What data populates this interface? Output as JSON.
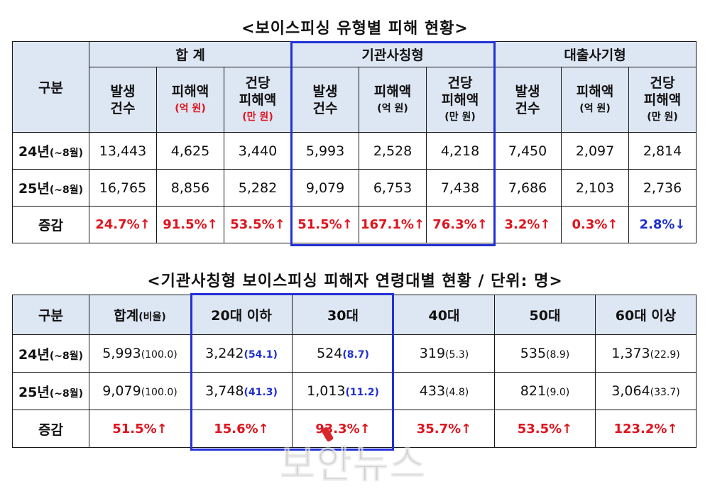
{
  "title1": "<보이스피싱 유형별 피해 현황>",
  "title2": "<기관사칭형 보이스피싱 피해자 연령대별 현황 / 단위: 명>",
  "table1": {
    "corner": "구분",
    "groups": [
      "합 계",
      "기관사칭형",
      "대출사기형"
    ],
    "sub": {
      "count_l1": "발생",
      "count_l2": "건수",
      "amount_l1": "피해액",
      "amount_unit": "(억 원)",
      "per_l1": "건당",
      "per_l2": "피해액",
      "per_unit": "(만 원)"
    },
    "rows": [
      {
        "label": "24년",
        "sub": "(~8월)",
        "values": [
          "13,443",
          "4,625",
          "3,440",
          "5,993",
          "2,528",
          "4,218",
          "7,450",
          "2,097",
          "2,814"
        ]
      },
      {
        "label": "25년",
        "sub": "(~8월)",
        "values": [
          "16,765",
          "8,856",
          "5,282",
          "9,079",
          "6,753",
          "7,438",
          "7,686",
          "2,103",
          "2,736"
        ]
      }
    ],
    "change": {
      "label": "증감",
      "values": [
        "24.7%↑",
        "91.5%↑",
        "53.5%↑",
        "51.5%↑",
        "167.1%↑",
        "76.3%↑",
        "3.2%↑",
        "0.3%↑",
        "2.8%↓"
      ]
    }
  },
  "table2": {
    "headers": [
      "구분",
      "합계",
      "(비율)",
      "20대 이하",
      "30대",
      "40대",
      "50대",
      "60대 이상"
    ],
    "rows": [
      {
        "label": "24년",
        "sub": "(~8월)",
        "cells": [
          {
            "v": "5,993",
            "r": "(100.0)"
          },
          {
            "v": "3,242",
            "r": "(54.1)"
          },
          {
            "v": "524",
            "r": "(8.7)"
          },
          {
            "v": "319",
            "r": "(5.3)"
          },
          {
            "v": "535",
            "r": "(8.9)"
          },
          {
            "v": "1,373",
            "r": "(22.9)"
          }
        ]
      },
      {
        "label": "25년",
        "sub": "(~8월)",
        "cells": [
          {
            "v": "9,079",
            "r": "(100.0)"
          },
          {
            "v": "3,748",
            "r": "(41.3)"
          },
          {
            "v": "1,013",
            "r": "(11.2)"
          },
          {
            "v": "433",
            "r": "(4.8)"
          },
          {
            "v": "821",
            "r": "(9.0)"
          },
          {
            "v": "3,064",
            "r": "(33.7)"
          }
        ]
      }
    ],
    "change": {
      "label": "증감",
      "values": [
        "51.5%↑",
        "15.6%↑",
        "93.3%↑",
        "35.7%↑",
        "53.5%↑",
        "123.2%↑"
      ]
    }
  },
  "watermark": "보안뉴스",
  "colors": {
    "header_bg": "#dde6f3",
    "increase": "#e0141e",
    "decrease": "#1f2fd0",
    "highlight_box": "#2330d6"
  }
}
